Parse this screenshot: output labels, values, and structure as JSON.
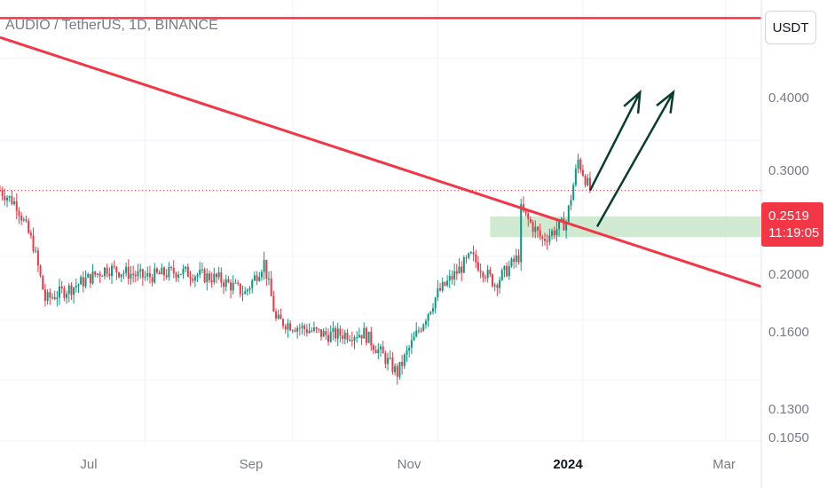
{
  "symbol_title": "AUDIO / TetherUS, 1D, BINANCE",
  "currency_button": "USDT",
  "last_price": "0.2519",
  "countdown": "11:19:05",
  "colors": {
    "up": "#089981",
    "down": "#f23645",
    "trendline": "#f23645",
    "zone": "#c8e6c9",
    "arrow": "#0b3d2e"
  },
  "chart_data": {
    "type": "candlestick",
    "title": "AUDIO / TetherUS, 1D, BINANCE",
    "y_scale": "log",
    "ylim": [
      0.104,
      0.49
    ],
    "y_ticks": [
      "0.4000",
      "0.3000",
      "0.2000",
      "0.1600",
      "0.1300",
      "0.1050"
    ],
    "x_ticks": [
      {
        "label": "Jul",
        "date": "2023-07-01",
        "bold": false
      },
      {
        "label": "Sep",
        "date": "2023-09-01",
        "bold": false
      },
      {
        "label": "Nov",
        "date": "2023-11-01",
        "bold": false
      },
      {
        "label": "2024",
        "date": "2024-01-01",
        "bold": true
      },
      {
        "label": "Mar",
        "date": "2024-03-01",
        "bold": false
      }
    ],
    "xlim": [
      "2023-05-01",
      "2024-03-16"
    ],
    "price_path": [
      {
        "date": "2023-05-01",
        "price": 0.252
      },
      {
        "date": "2023-05-08",
        "price": 0.24
      },
      {
        "date": "2023-05-15",
        "price": 0.208
      },
      {
        "date": "2023-05-20",
        "price": 0.172
      },
      {
        "date": "2023-06-01",
        "price": 0.18
      },
      {
        "date": "2023-06-15",
        "price": 0.192
      },
      {
        "date": "2023-07-01",
        "price": 0.186
      },
      {
        "date": "2023-07-15",
        "price": 0.19
      },
      {
        "date": "2023-08-01",
        "price": 0.185
      },
      {
        "date": "2023-08-12",
        "price": 0.176
      },
      {
        "date": "2023-08-20",
        "price": 0.196
      },
      {
        "date": "2023-08-25",
        "price": 0.16
      },
      {
        "date": "2023-09-15",
        "price": 0.152
      },
      {
        "date": "2023-10-01",
        "price": 0.153
      },
      {
        "date": "2023-10-10",
        "price": 0.14
      },
      {
        "date": "2023-10-15",
        "price": 0.133
      },
      {
        "date": "2023-10-20",
        "price": 0.145
      },
      {
        "date": "2023-11-01",
        "price": 0.176
      },
      {
        "date": "2023-11-15",
        "price": 0.2
      },
      {
        "date": "2023-11-25",
        "price": 0.182
      },
      {
        "date": "2023-12-05",
        "price": 0.2
      },
      {
        "date": "2023-12-06",
        "price": 0.235
      },
      {
        "date": "2023-12-15",
        "price": 0.212
      },
      {
        "date": "2023-12-25",
        "price": 0.226
      },
      {
        "date": "2023-12-30",
        "price": 0.28
      },
      {
        "date": "2024-01-04",
        "price": 0.2519
      }
    ],
    "last_price": 0.2519,
    "horizontal_line": 0.46,
    "trendline": {
      "start": {
        "date": "2023-05-01",
        "price": 0.43
      },
      "end": {
        "date": "2024-03-16",
        "price": 0.18
      }
    },
    "support_zone": {
      "from": "2023-11-23",
      "to": "2024-03-16",
      "low": 0.214,
      "high": 0.23
    },
    "arrows": [
      {
        "from": {
          "date": "2024-01-04",
          "price": 0.2519
        },
        "to": {
          "date": "2024-01-25",
          "price": 0.355
        }
      },
      {
        "from": {
          "date": "2024-01-07",
          "price": 0.222
        },
        "to": {
          "date": "2024-02-08",
          "price": 0.355
        }
      }
    ]
  }
}
